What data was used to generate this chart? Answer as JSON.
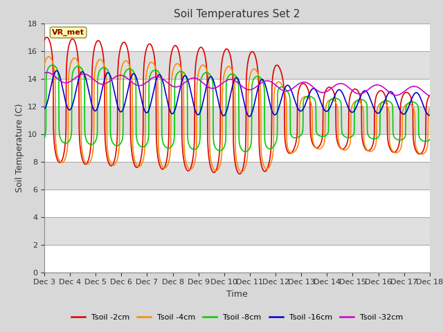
{
  "title": "Soil Temperatures Set 2",
  "xlabel": "Time",
  "ylabel": "Soil Temperature (C)",
  "ylim": [
    0,
    18
  ],
  "yticks": [
    0,
    2,
    4,
    6,
    8,
    10,
    12,
    14,
    16,
    18
  ],
  "x_labels": [
    "Dec 3",
    "Dec 4",
    "Dec 5",
    "Dec 6",
    "Dec 7",
    "Dec 8",
    "Dec 9",
    "Dec 10",
    "Dec 11",
    "Dec 12",
    "Dec 13",
    "Dec 14",
    "Dec 15",
    "Dec 16",
    "Dec 17",
    "Dec 18"
  ],
  "annotation_text": "VR_met",
  "colors": [
    "#dd0000",
    "#ff8800",
    "#00cc00",
    "#0000cc",
    "#cc00cc"
  ],
  "labels": [
    "Tsoil -2cm",
    "Tsoil -4cm",
    "Tsoil -8cm",
    "Tsoil -16cm",
    "Tsoil -32cm"
  ],
  "plot_bg_alternating": [
    "#ffffff",
    "#e0e0e0"
  ],
  "fig_bg": "#d8d8d8",
  "title_fontsize": 11,
  "axis_label_fontsize": 9,
  "tick_fontsize": 8
}
